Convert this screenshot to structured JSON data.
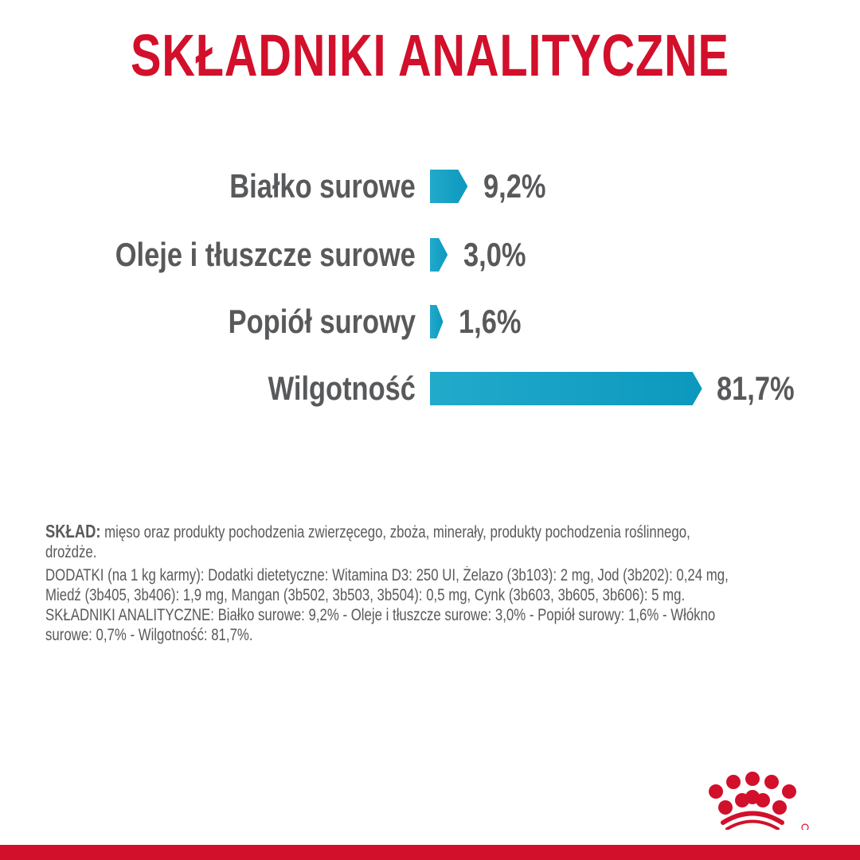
{
  "title": "SKŁADNIKI ANALITYCZNE",
  "colors": {
    "brand_red": "#d2102b",
    "bar": "#14a0c4",
    "text": "#58595b"
  },
  "chart_data": {
    "type": "bar",
    "orientation": "horizontal",
    "categories": [
      "Białko surowe",
      "Oleje i tłuszcze surowe",
      "Popiół surowy",
      "Wilgotność"
    ],
    "values": [
      9.2,
      3.0,
      1.6,
      81.7
    ],
    "value_labels": [
      "9,2%",
      "3,0%",
      "1,6%",
      "81,7%"
    ],
    "unit": "%",
    "grid": false
  },
  "composition": {
    "heading": "SKŁAD:",
    "lines": [
      " mięso oraz produkty pochodzenia zwierzęcego, zboża, minerały, produkty pochodzenia roślinnego,",
      "drożdże.",
      "DODATKI (na 1 kg karmy): Dodatki dietetyczne: Witamina D3: 250 UI, Żelazo (3b103): 2 mg, Jod (3b202): 0,24 mg,",
      "Miedź (3b405, 3b406): 1,9 mg, Mangan (3b502, 3b503, 3b504): 0,5 mg, Cynk (3b603, 3b605, 3b606): 5 mg.",
      "SKŁADNIKI ANALITYCZNE: Białko surowe: 9,2% - Oleje i tłuszcze surowe: 3,0% - Popiół surowy: 1,6% - Włókno",
      "surowe: 0,7% - Wilgotność: 81,7%."
    ]
  },
  "logo": {
    "name": "crown-logo"
  }
}
